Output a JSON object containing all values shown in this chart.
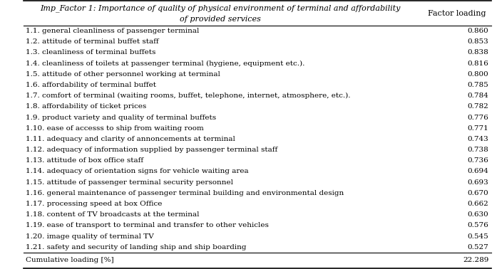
{
  "title_italic": "Imp_Factor 1: Importance of quality of physical environment of terminal and affordability",
  "title_line2": "of provided services",
  "col_header": "Factor loading",
  "rows": [
    [
      "1.1. general cleanliness of passenger terminal",
      "0.860"
    ],
    [
      "1.2. attitude of terminal buffet staff",
      "0.853"
    ],
    [
      "1.3. cleanliness of terminal buffets",
      "0.838"
    ],
    [
      "1.4. cleanliness of toilets at passenger terminal (hygiene, equipment etc.).",
      "0.816"
    ],
    [
      "1.5. attitude of other personnel working at terminal",
      "0.800"
    ],
    [
      "1.6. affordability of terminal buffet",
      "0.785"
    ],
    [
      "1.7. comfort of terminal (waiting rooms, buffet, telephone, internet, atmosphere, etc.).",
      "0.784"
    ],
    [
      "1.8. affordability of ticket prices",
      "0.782"
    ],
    [
      "1.9. product variety and quality of terminal buffets",
      "0.776"
    ],
    [
      "1.10. ease of accesss to ship from waiting room",
      "0.771"
    ],
    [
      "1.11. adequacy and clarity of annoncements at terminal",
      "0.743"
    ],
    [
      "1.12. adequacy of information supplied by passenger terminal staff",
      "0.738"
    ],
    [
      "1.13. attitude of box office staff",
      "0.736"
    ],
    [
      "1.14. adequacy of orientation signs for vehicle waiting area",
      "0.694"
    ],
    [
      "1.15. attitude of passenger terminal security personnel",
      "0.693"
    ],
    [
      "1.16. general maintenance of passenger terminal building and environmental design",
      "0.670"
    ],
    [
      "1.17. processing speed at box Office",
      "0.662"
    ],
    [
      "1.18. content of TV broadcasts at the terminal",
      "0.630"
    ],
    [
      "1.19. ease of transport to terminal and transfer to other vehicles",
      "0.576"
    ],
    [
      "1.20. image quality of terminal TV",
      "0.545"
    ],
    [
      "1.21. safety and security of landing ship and ship boarding",
      "0.527"
    ]
  ],
  "footer_label": "Cumulative loading [%]",
  "footer_value": "22.289",
  "bg_color": "#ffffff",
  "text_color": "#000000",
  "font_size": 7.5,
  "header_font_size": 8.0
}
